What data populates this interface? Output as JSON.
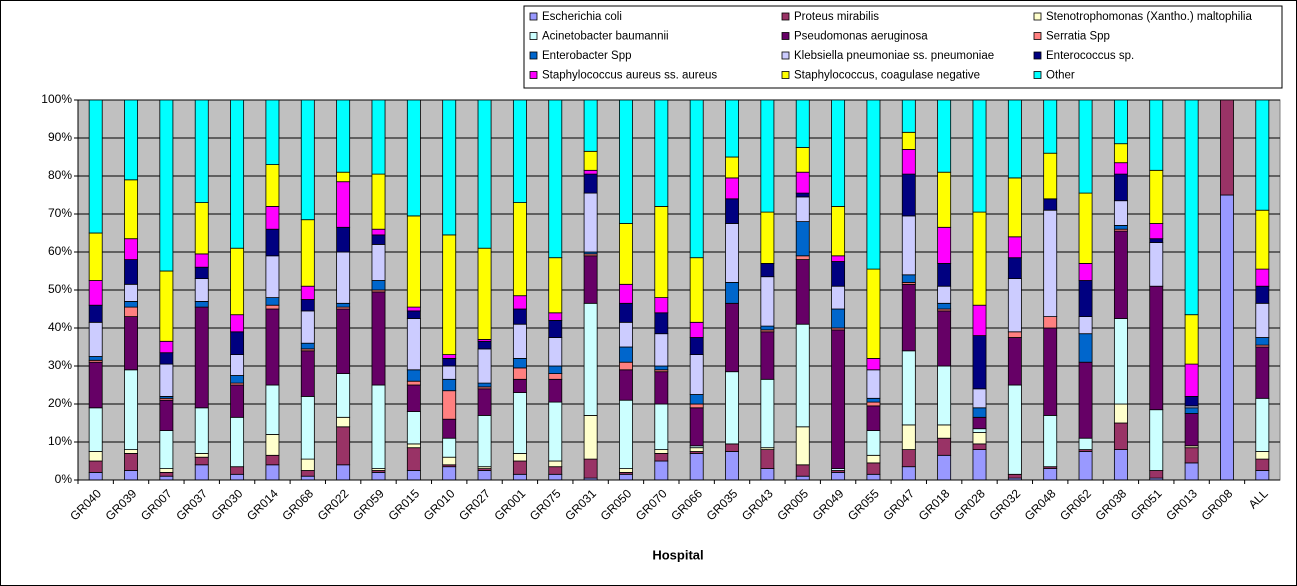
{
  "chart_data": {
    "type": "bar",
    "stacked": true,
    "grid": true,
    "legend": "top-right",
    "x_label": "Hospital",
    "categories": [
      "GR040",
      "GR039",
      "GR007",
      "GR037",
      "GR030",
      "GR014",
      "GR068",
      "GR022",
      "GR059",
      "GR015",
      "GR010",
      "GR027",
      "GR001",
      "GR075",
      "GR031",
      "GR050",
      "GR070",
      "GR066",
      "GR035",
      "GR043",
      "GR005",
      "GR049",
      "GR055",
      "GR047",
      "GR018",
      "GR028",
      "GR032",
      "GR048",
      "GR062",
      "GR038",
      "GR051",
      "GR013",
      "GR008",
      "ALL"
    ],
    "ylim": [
      0,
      100
    ],
    "yticks": [
      {
        "value": 0,
        "label": "0%"
      },
      {
        "value": 10,
        "label": "10%"
      },
      {
        "value": 20,
        "label": "20%"
      },
      {
        "value": 30,
        "label": "30%"
      },
      {
        "value": 40,
        "label": "40%"
      },
      {
        "value": 50,
        "label": "50%"
      },
      {
        "value": 60,
        "label": "60%"
      },
      {
        "value": 70,
        "label": "70%"
      },
      {
        "value": 80,
        "label": "80%"
      },
      {
        "value": 90,
        "label": "90%"
      },
      {
        "value": 100,
        "label": "100%"
      }
    ],
    "series": [
      {
        "name": "Escherichia coli",
        "color": "#9999FF",
        "values": [
          2,
          2.5,
          1,
          4,
          1.5,
          4,
          1,
          4,
          2,
          2.5,
          3.5,
          2.5,
          1.5,
          1.5,
          0.5,
          1.5,
          5,
          7,
          7.5,
          3,
          1,
          2,
          1.5,
          3.5,
          6.5,
          8,
          0.5,
          3,
          7.5,
          8,
          0.5,
          4.5,
          75,
          2.5
        ]
      },
      {
        "name": "Proteus mirabilis",
        "color": "#993366",
        "values": [
          3,
          4.5,
          1,
          2,
          2,
          2.5,
          1.5,
          10,
          0.5,
          6,
          0.5,
          0.5,
          3.5,
          2,
          5,
          0.5,
          2,
          0.5,
          2,
          5,
          3,
          0.5,
          3,
          4.5,
          4.5,
          1.5,
          1,
          0.5,
          0.5,
          7,
          2,
          4,
          25,
          3
        ]
      },
      {
        "name": "Stenotrophomonas (Xantho.) maltophilia",
        "color": "#FFFFCC",
        "values": [
          2.5,
          1,
          1,
          1,
          0,
          5.5,
          3,
          2.5,
          0.5,
          1,
          2,
          0.5,
          2,
          1.5,
          11.5,
          1,
          1,
          1,
          0,
          0.5,
          10,
          0,
          2,
          6.5,
          3.5,
          3,
          0,
          0,
          0,
          5,
          0,
          0.5,
          0,
          2
        ]
      },
      {
        "name": "Acinetobacter baumannii",
        "color": "#CCFFFF",
        "values": [
          11.5,
          21,
          10,
          12,
          13,
          13,
          16.5,
          11.5,
          22,
          8.5,
          5,
          13.5,
          16,
          15.5,
          29.5,
          18,
          12,
          0.5,
          19,
          18,
          27,
          0.5,
          6.5,
          19.5,
          15.5,
          1,
          23.5,
          13.5,
          3,
          22.5,
          16,
          0,
          0,
          14
        ]
      },
      {
        "name": "Pseudomonas aeruginosa",
        "color": "#660066",
        "values": [
          12,
          14,
          8,
          26.5,
          8.5,
          20,
          12,
          17,
          24.5,
          7,
          5,
          7,
          3.5,
          6,
          12.5,
          8,
          8.5,
          10,
          18,
          12.5,
          17,
          36.5,
          6.5,
          17.5,
          14.5,
          3,
          12.5,
          23,
          20,
          23,
          32.5,
          8.5,
          0,
          13.5
        ]
      },
      {
        "name": "Serratia Spp",
        "color": "#FF8080",
        "values": [
          0.5,
          2.5,
          0.5,
          0,
          0.5,
          1,
          0.5,
          0.5,
          0.5,
          1,
          7.5,
          0.5,
          3,
          1.5,
          0.5,
          2,
          0.5,
          1,
          0,
          0.5,
          1,
          0.5,
          1,
          0.5,
          0.5,
          0,
          1.5,
          3,
          0,
          0.5,
          0,
          0,
          0,
          0.5
        ]
      },
      {
        "name": "Enterobacter Spp",
        "color": "#0066CC",
        "values": [
          1,
          1.5,
          0.5,
          1.5,
          2,
          2,
          1.5,
          1,
          2.5,
          3,
          3,
          1,
          2.5,
          2,
          0.5,
          4,
          1,
          2.5,
          5.5,
          1,
          9,
          5,
          1,
          2,
          1.5,
          2.5,
          0,
          0,
          7.5,
          1,
          0,
          1.5,
          0,
          2
        ]
      },
      {
        "name": "Klebsiella pneumoniae ss. pneumoniae",
        "color": "#CCCCFF",
        "values": [
          9,
          4.5,
          8.5,
          6,
          5.5,
          11,
          8.5,
          13.5,
          9.5,
          13.5,
          3.5,
          9,
          9,
          7.5,
          15.5,
          6.5,
          8.5,
          10.5,
          15.5,
          13,
          6.5,
          6,
          7.5,
          15.5,
          4.5,
          5,
          14,
          28,
          4.5,
          6.5,
          11.5,
          0.5,
          0,
          9
        ]
      },
      {
        "name": "Enterococcus sp.",
        "color": "#000080",
        "values": [
          4.5,
          6.5,
          3,
          3,
          6,
          7,
          3,
          6.5,
          2.5,
          2,
          2,
          2,
          4,
          4.5,
          5,
          5,
          5.5,
          4.5,
          6.5,
          3.5,
          1,
          6.5,
          0,
          11,
          6,
          14,
          5.5,
          3,
          9.5,
          7,
          1,
          2.5,
          0,
          4.5
        ]
      },
      {
        "name": "Staphylococcus aureus ss. aureus",
        "color": "#FF00FF",
        "values": [
          6.5,
          5.5,
          3,
          3.5,
          4.5,
          6,
          3.5,
          12,
          1.5,
          1,
          1,
          0.5,
          3.5,
          2,
          1,
          5,
          4,
          4,
          5.5,
          0,
          5.5,
          1.5,
          3,
          6.5,
          9.5,
          8,
          5.5,
          0,
          4.5,
          3,
          4,
          8.5,
          0,
          4.5
        ]
      },
      {
        "name": "Staphylococcus, coagulase negative",
        "color": "#FFFF00",
        "values": [
          12.5,
          15.5,
          18.5,
          13.5,
          17.5,
          11,
          17.5,
          2.5,
          14.5,
          24,
          31.5,
          24,
          24.5,
          14.5,
          5,
          16,
          24,
          17,
          5.5,
          13.5,
          6.5,
          13,
          23.5,
          4.5,
          14.5,
          24.5,
          15.5,
          12,
          18.5,
          5,
          14,
          13,
          0,
          15.5
        ]
      },
      {
        "name": "Other",
        "color": "#00FFFF",
        "values": [
          35,
          21,
          45,
          27,
          39,
          17,
          31.5,
          19,
          19.5,
          30.5,
          35.5,
          39,
          27,
          41.5,
          13.5,
          32.5,
          28,
          41.5,
          15,
          29.5,
          12.5,
          28,
          44.5,
          8.5,
          19,
          29.5,
          20.5,
          14,
          24.5,
          11.5,
          18.5,
          56.5,
          0,
          29
        ]
      }
    ]
  }
}
